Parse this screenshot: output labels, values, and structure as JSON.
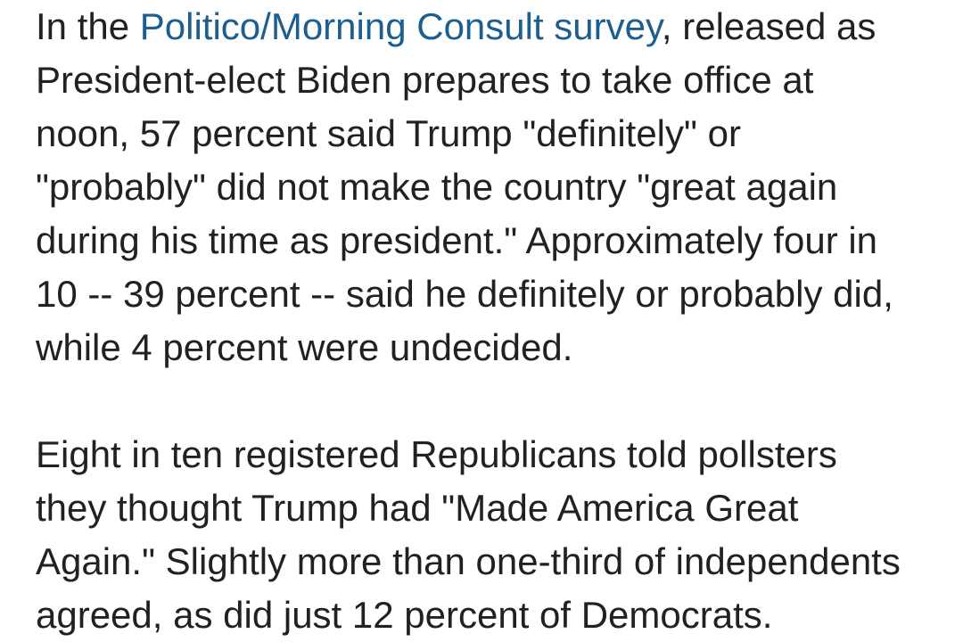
{
  "page": {
    "background_color": "#ffffff",
    "text_color": "#202124",
    "link_color": "#1b5e8f"
  },
  "article": {
    "p1": {
      "l1_pre": "In the ",
      "l1_link": "Politico/Morning Consult survey",
      "l1_post": ", released as",
      "l2": "President-elect Biden prepares to take office at",
      "l3": "noon, 57 percent said Trump \"definitely\" or",
      "l4": "\"probably\" did not make the country \"great again",
      "l5": "during his time as president.\" Approximately four in",
      "l6": "10 -- 39 percent -- said he definitely or probably did,",
      "l7": "while 4 percent were undecided."
    },
    "p2": {
      "l1": "Eight in ten registered Republicans told pollsters",
      "l2": "they thought Trump had \"Made America Great",
      "l3": "Again.\" Slightly more than one-third of independents",
      "l4": "agreed, as did just 12 percent of Democrats."
    }
  }
}
